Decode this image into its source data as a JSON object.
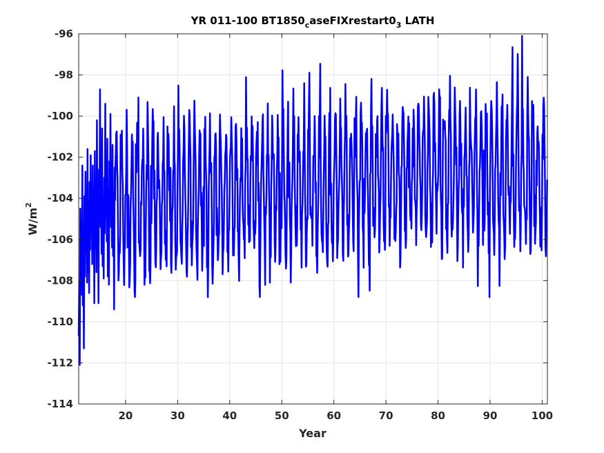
{
  "chart_data": {
    "type": "line",
    "title": "YR 011-100 BT1850",
    "title_subscript_1": "c",
    "title_mid": "aseFIXrestart0",
    "title_subscript_2": "3",
    "title_end": " LATH",
    "xlabel": "Year",
    "ylabel_base": "W/m",
    "ylabel_superscript": "2",
    "xlim": [
      11,
      101
    ],
    "ylim": [
      -114,
      -96
    ],
    "xticks": [
      "20",
      "30",
      "40",
      "50",
      "60",
      "70",
      "80",
      "90",
      "100"
    ],
    "yticks": [
      "-96",
      "-98",
      "-100",
      "-102",
      "-104",
      "-106",
      "-108",
      "-110",
      "-112",
      "-114"
    ],
    "grid": true,
    "line_color": "#0000ff",
    "series": [
      {
        "values_note_free": true,
        "x": [
          11.0,
          11.1,
          11.2,
          11.3,
          11.4,
          11.5,
          11.6,
          11.7,
          11.8,
          11.9,
          12.0,
          12.1,
          12.2,
          12.3,
          12.4,
          12.5,
          12.6,
          12.7,
          12.8,
          12.9,
          13.0,
          13.1,
          13.2,
          13.3,
          13.4,
          13.5,
          13.6,
          13.7,
          13.8,
          13.9,
          14.0,
          14.1,
          14.2,
          14.3,
          14.4,
          14.5,
          14.6,
          14.7,
          14.8,
          14.9,
          15.0,
          15.1,
          15.2,
          15.3,
          15.4,
          15.5,
          15.6,
          15.7,
          15.8,
          15.9,
          16.0,
          16.1,
          16.2,
          16.3,
          16.4,
          16.5,
          16.6,
          16.7,
          16.8,
          16.9,
          17.0,
          17.1,
          17.2,
          17.3,
          17.4,
          17.5,
          17.6,
          17.7,
          17.8,
          17.9,
          18.0
        ],
        "y": [
          -110.7,
          -108.0,
          -112.1,
          -104.5,
          -107.5,
          -105.5,
          -108.7,
          -102.4,
          -109.2,
          -106.2,
          -111.3,
          -103.9,
          -107.8,
          -102.7,
          -106.2,
          -104.0,
          -108.1,
          -101.6,
          -107.6,
          -104.5,
          -108.6,
          -103.2,
          -106.5,
          -101.9,
          -105.2,
          -103.7,
          -107.2,
          -102.4,
          -105.8,
          -104.0,
          -109.1,
          -101.7,
          -106.4,
          -103.4,
          -107.6,
          -100.2,
          -106.0,
          -104.3,
          -109.1,
          -102.6,
          -104.6,
          -98.7,
          -105.4,
          -103.3,
          -106.7,
          -100.6,
          -107.3,
          -104.2,
          -107.9,
          -103.0,
          -105.7,
          -99.4,
          -104.9,
          -102.6,
          -106.1,
          -101.1,
          -107.8,
          -103.6,
          -108.2,
          -102.2,
          -104.4,
          -99.9,
          -105.4,
          -103.3,
          -106.4,
          -101.4,
          -106.8,
          -103.7,
          -109.4,
          -102.5,
          -104.1
        ]
      }
    ]
  }
}
